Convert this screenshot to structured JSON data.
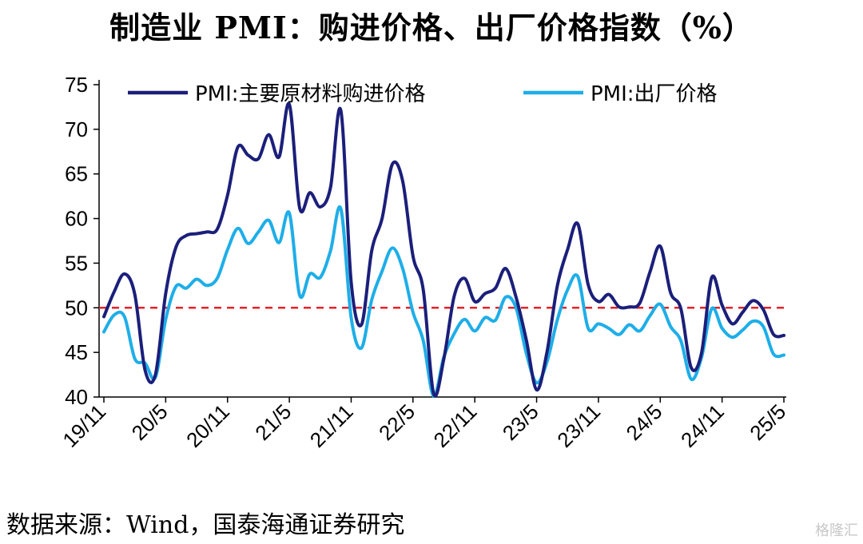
{
  "title": "制造业 PMI：购进价格、出厂价格指数（%）",
  "source": "数据来源：Wind，国泰海通证券研究",
  "watermark": "格隆汇",
  "chart_data": {
    "type": "line",
    "ylim": [
      40,
      75
    ],
    "yticks": [
      40,
      45,
      50,
      55,
      60,
      65,
      70,
      75
    ],
    "x_tick_labels": [
      "19/11",
      "20/5",
      "20/11",
      "21/5",
      "21/11",
      "22/5",
      "22/11",
      "23/5",
      "23/11",
      "24/5",
      "24/11",
      "25/5"
    ],
    "reference_line": {
      "value": 50,
      "color": "#e8212a",
      "style": "dashed"
    },
    "legend_position": "top",
    "x": [
      "19/11",
      "19/12",
      "20/1",
      "20/2",
      "20/3",
      "20/4",
      "20/5",
      "20/6",
      "20/7",
      "20/8",
      "20/9",
      "20/10",
      "20/11",
      "20/12",
      "21/1",
      "21/2",
      "21/3",
      "21/4",
      "21/5",
      "21/6",
      "21/7",
      "21/8",
      "21/9",
      "21/10",
      "21/11",
      "21/12",
      "22/1",
      "22/2",
      "22/3",
      "22/4",
      "22/5",
      "22/6",
      "22/7",
      "22/8",
      "22/9",
      "22/10",
      "22/11",
      "22/12",
      "23/1",
      "23/2",
      "23/3",
      "23/4",
      "23/5",
      "23/6",
      "23/7",
      "23/8",
      "23/9",
      "23/10",
      "23/11",
      "23/12",
      "24/1",
      "24/2",
      "24/3",
      "24/4",
      "24/5",
      "24/6",
      "24/7",
      "24/8",
      "24/9",
      "24/10",
      "24/11",
      "24/12",
      "25/1",
      "25/2",
      "25/3",
      "25/4",
      "25/5"
    ],
    "series": [
      {
        "name": "PMI:主要原材料购进价格",
        "color": "#1b1f7a",
        "values": [
          49.0,
          51.8,
          53.8,
          51.5,
          43.0,
          42.5,
          51.6,
          56.8,
          58.1,
          58.3,
          58.5,
          58.8,
          62.6,
          68.0,
          67.1,
          66.7,
          69.4,
          66.9,
          72.8,
          61.2,
          62.9,
          61.3,
          63.5,
          72.1,
          52.9,
          48.1,
          56.4,
          60.0,
          66.1,
          64.2,
          55.8,
          52.0,
          40.4,
          44.3,
          51.3,
          53.3,
          50.7,
          51.6,
          52.2,
          54.4,
          51.2,
          46.4,
          40.8,
          45.0,
          52.4,
          56.5,
          59.4,
          52.6,
          50.7,
          51.5,
          50.1,
          50.1,
          50.5,
          54.0,
          56.9,
          51.7,
          49.9,
          43.3,
          44.9,
          53.4,
          50.3,
          48.2,
          49.5,
          50.8,
          49.8,
          47.0,
          46.9
        ]
      },
      {
        "name": "PMI:出厂价格",
        "color": "#1eaee8",
        "values": [
          47.3,
          49.2,
          49.0,
          44.3,
          43.8,
          42.2,
          48.7,
          52.4,
          52.2,
          53.2,
          52.5,
          53.3,
          56.5,
          58.9,
          57.2,
          58.5,
          59.8,
          57.3,
          60.6,
          51.4,
          53.8,
          53.4,
          56.4,
          61.1,
          48.9,
          45.5,
          50.9,
          54.1,
          56.7,
          54.4,
          49.5,
          46.3,
          40.1,
          44.5,
          47.1,
          48.7,
          47.4,
          48.9,
          48.6,
          51.2,
          50.0,
          44.9,
          41.6,
          43.9,
          48.6,
          52.0,
          53.5,
          47.7,
          48.2,
          47.7,
          47.0,
          48.1,
          47.4,
          49.1,
          50.4,
          47.9,
          46.3,
          42.0,
          44.4,
          49.9,
          47.7,
          46.7,
          47.5,
          48.5,
          47.9,
          44.8,
          44.7
        ]
      }
    ]
  }
}
